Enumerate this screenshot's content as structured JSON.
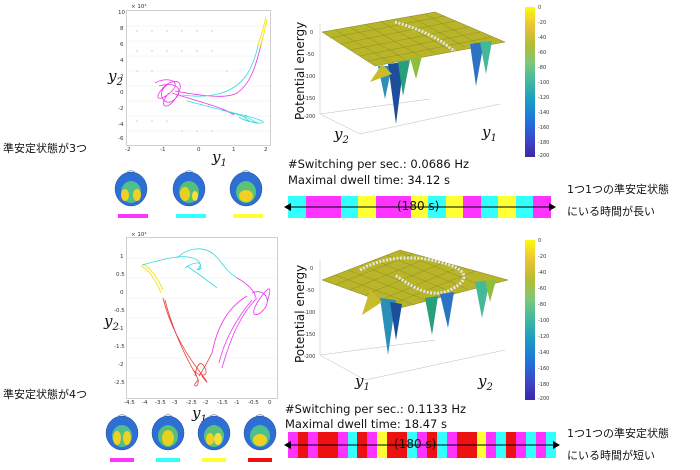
{
  "top": {
    "side_label": "準安定状態が3つ",
    "x_var": "y",
    "x_sub": "1",
    "y_var": "y",
    "y_sub": "2",
    "surface_z_label": "Potential energy",
    "surface_y2": "y",
    "surface_y2_sub": "2",
    "surface_y1": "y",
    "surface_y1_sub": "1",
    "switching_label": "#Switching per sec.: 0.0686 Hz",
    "dwell_label": "Maximal dwell time: 34.12 s",
    "duration_label": "(180 s)",
    "note_line1": "1つ1つの準安定状態",
    "note_line2": "にいる時間が長い",
    "scatter_exp": "× 10⁴",
    "yticks": [
      "10",
      "8",
      "6",
      "4",
      "2",
      "0",
      "-2",
      "-4",
      "-6"
    ],
    "xticks": [
      "-2",
      "-1",
      "0",
      "1",
      "2"
    ],
    "cbar_ticks": [
      "0",
      "-20",
      "-40",
      "-60",
      "-80",
      "-100",
      "-120",
      "-140",
      "-160",
      "-180",
      "-200"
    ],
    "state_colors": [
      "#ff33ff",
      "#33ffff",
      "#ffff33"
    ],
    "sequence": [
      "#33ffff",
      "#ff33ff",
      "#ff33ff",
      "#33ffff",
      "#ffff33",
      "#ff33ff",
      "#ff33ff",
      "#ffff33",
      "#33ffff",
      "#ffff33",
      "#ff33ff",
      "#33ffff",
      "#ffff33",
      "#33ffff",
      "#ff33ff"
    ]
  },
  "bottom": {
    "side_label": "準安定状態が4つ",
    "x_var": "y",
    "x_sub": "1",
    "y_var": "y",
    "y_sub": "2",
    "surface_z_label": "Potential energy",
    "surface_y1": "y",
    "surface_y1_sub": "1",
    "surface_y2": "y",
    "surface_y2_sub": "2",
    "switching_label": "#Switching per sec.: 0.1133 Hz",
    "dwell_label": "Maximal dwell time: 18.47 s",
    "duration_label": "(180 s)",
    "note_line1": "1つ1つの準安定状態",
    "note_line2": "にいる時間が短い",
    "scatter_exp": "× 10⁴",
    "yticks": [
      "1",
      "0.5",
      "0",
      "-0.5",
      "-1",
      "-1.5",
      "-2",
      "-2.5"
    ],
    "xticks": [
      "-4.5",
      "-4",
      "-3.5",
      "-3",
      "-2.5",
      "-2",
      "-1.5",
      "-1",
      "-0.5",
      "0"
    ],
    "cbar_ticks": [
      "0",
      "-20",
      "-40",
      "-60",
      "-80",
      "-100",
      "-120",
      "-140",
      "-160",
      "-180",
      "-200"
    ],
    "state_colors": [
      "#ff33ff",
      "#33ffff",
      "#ffff33",
      "#ee1111"
    ],
    "sequence": [
      "#ff33ff",
      "#ee1111",
      "#ff33ff",
      "#ee1111",
      "#ee1111",
      "#ff33ff",
      "#33ffff",
      "#ee1111",
      "#ff33ff",
      "#ffff33",
      "#ee1111",
      "#ee1111",
      "#33ffff",
      "#ff33ff",
      "#ee1111",
      "#33ffff",
      "#ff33ff",
      "#ee1111",
      "#ee1111",
      "#ffff33",
      "#ff33ff",
      "#33ffff",
      "#ee1111",
      "#ff33ff",
      "#33ffff",
      "#ff33ff",
      "#33ffff"
    ]
  }
}
